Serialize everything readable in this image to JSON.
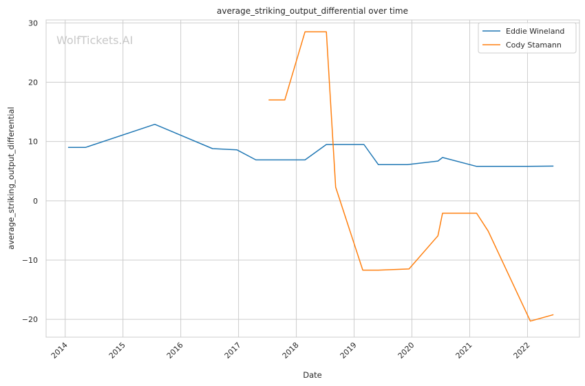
{
  "chart_data": {
    "type": "line",
    "title": "average_striking_output_differential over time",
    "xlabel": "Date",
    "ylabel": "average_striking_output_differential",
    "watermark": "WolfTickets.AI",
    "xlim": [
      2013.67,
      2022.9
    ],
    "ylim": [
      -23,
      30.5
    ],
    "x_ticks": [
      2014,
      2015,
      2016,
      2017,
      2018,
      2019,
      2020,
      2021,
      2022
    ],
    "x_tick_labels": [
      "2014",
      "2015",
      "2016",
      "2017",
      "2018",
      "2019",
      "2020",
      "2021",
      "2022"
    ],
    "y_ticks": [
      -20,
      -10,
      0,
      10,
      20,
      30
    ],
    "y_tick_labels": [
      "−20",
      "−10",
      "0",
      "10",
      "20",
      "30"
    ],
    "grid": true,
    "legend_position": "top-right",
    "series": [
      {
        "name": "Eddie Wineland",
        "color": "#1f77b4",
        "x": [
          2014.05,
          2014.35,
          2015.55,
          2016.55,
          2016.97,
          2017.3,
          2018.15,
          2018.52,
          2019.17,
          2019.42,
          2019.92,
          2020.45,
          2020.53,
          2021.12,
          2022.0,
          2022.45
        ],
        "y": [
          9.0,
          9.0,
          12.9,
          8.8,
          8.6,
          6.9,
          6.9,
          9.5,
          9.5,
          6.1,
          6.1,
          6.7,
          7.3,
          5.8,
          5.8,
          5.85
        ]
      },
      {
        "name": "Cody Stamann",
        "color": "#ff7f0e",
        "x": [
          2017.52,
          2017.8,
          2018.15,
          2018.52,
          2018.68,
          2019.15,
          2019.42,
          2019.95,
          2020.45,
          2020.53,
          2021.12,
          2021.32,
          2022.05,
          2022.45
        ],
        "y": [
          17.0,
          17.0,
          28.5,
          28.5,
          2.3,
          -11.7,
          -11.7,
          -11.5,
          -5.9,
          -2.1,
          -2.1,
          -5.1,
          -20.3,
          -19.2
        ]
      }
    ]
  }
}
